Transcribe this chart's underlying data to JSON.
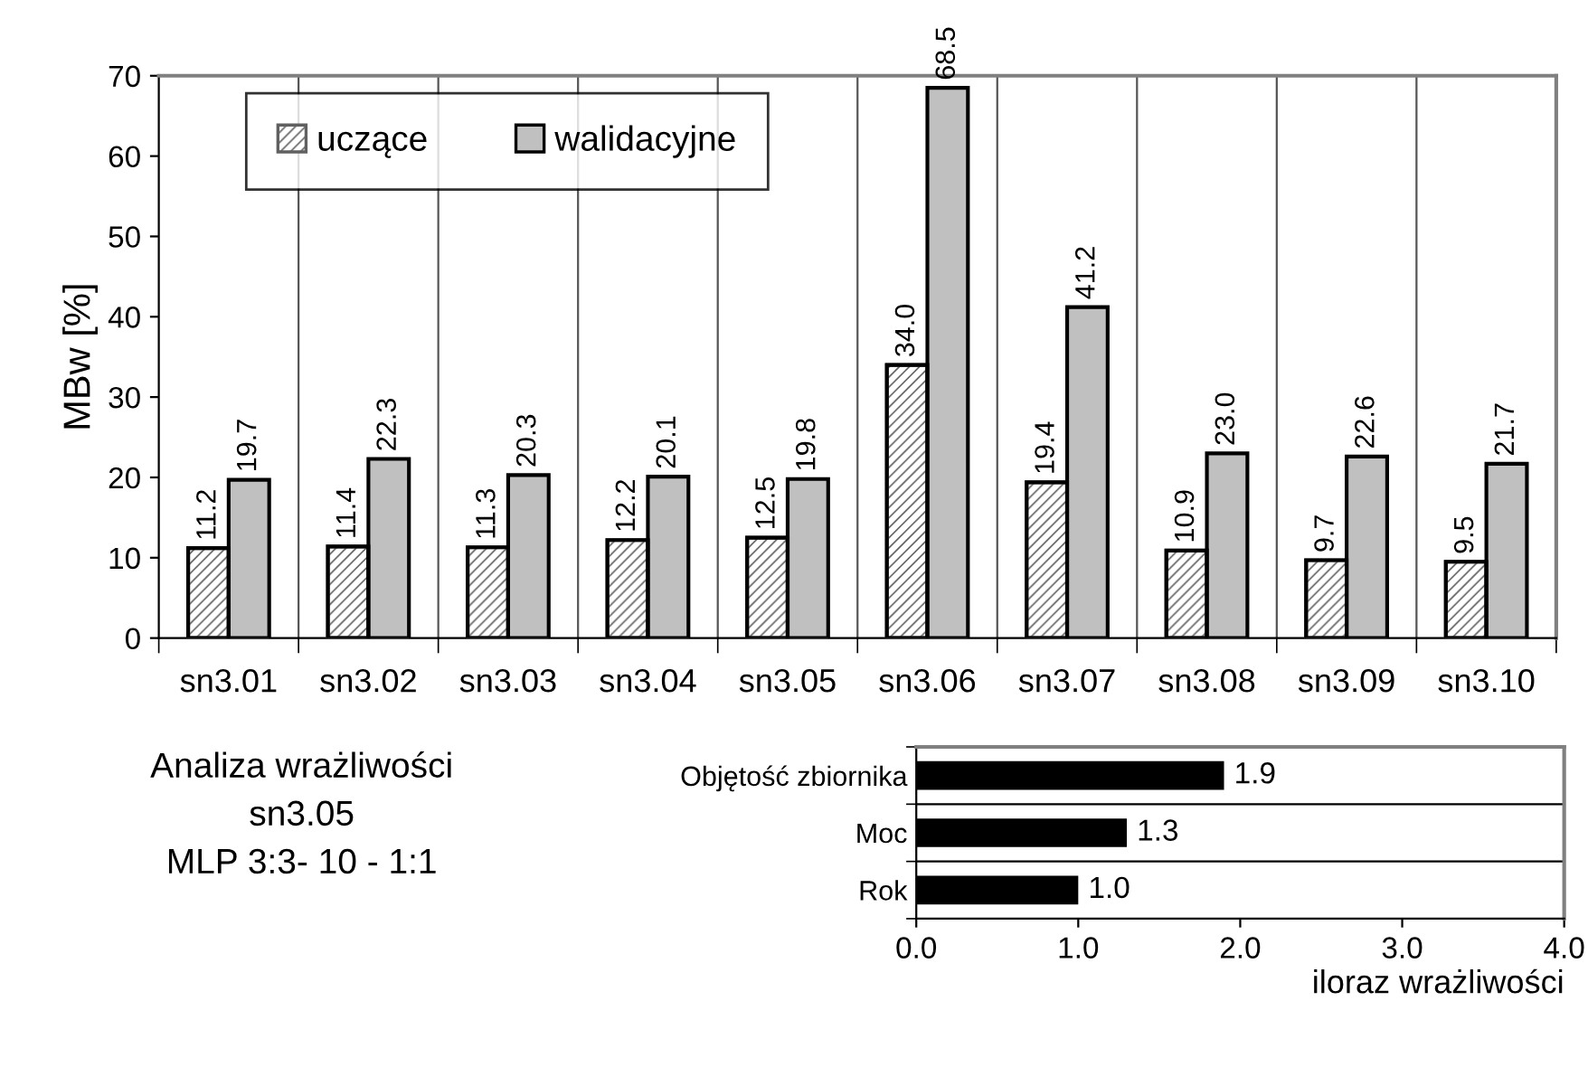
{
  "chart_data": [
    {
      "type": "bar",
      "ylabel": "MBw [%]",
      "categories": [
        "sn3.01",
        "sn3.02",
        "sn3.03",
        "sn3.04",
        "sn3.05",
        "sn3.06",
        "sn3.07",
        "sn3.08",
        "sn3.09",
        "sn3.10"
      ],
      "series": [
        {
          "name": "uczące",
          "color": "#606060",
          "values": [
            11.2,
            11.4,
            11.3,
            12.2,
            12.5,
            34.0,
            19.4,
            10.9,
            9.7,
            9.5
          ],
          "value_labels": [
            "11.2",
            "11.4",
            "11.3",
            "12.2",
            "12.5",
            "34.0",
            "19.4",
            "10.9",
            "9.7",
            "9.5"
          ]
        },
        {
          "name": "walidacyjne",
          "color": "#c0c0c0",
          "values": [
            19.7,
            22.3,
            20.3,
            20.1,
            19.8,
            68.5,
            41.2,
            23.0,
            22.6,
            21.7
          ],
          "value_labels": [
            "19.7",
            "22.3",
            "20.3",
            "20.1",
            "19.8",
            "68.5",
            "41.2",
            "23.0",
            "22.6",
            "21.7"
          ]
        }
      ],
      "ylim": [
        0,
        70
      ],
      "yticks": [
        0,
        10,
        20,
        30,
        40,
        50,
        60,
        70
      ],
      "grid": "x",
      "legend": "top left"
    },
    {
      "type": "bar",
      "orientation": "horizontal",
      "xlabel": "iloraz wrażliwości",
      "categories": [
        "Objętość zbiornika",
        "Moc",
        "Rok"
      ],
      "values": [
        1.9,
        1.3,
        1.0
      ],
      "value_labels": [
        "1.9",
        "1.3",
        "1.0"
      ],
      "color": "#000000",
      "xlim": [
        0,
        4
      ],
      "xticks": [
        {
          "value": 0,
          "label": "0.0"
        },
        {
          "value": 1,
          "label": "1.0"
        },
        {
          "value": 2,
          "label": "2.0"
        },
        {
          "value": 3,
          "label": "3.0"
        },
        {
          "value": 4,
          "label": "4.0"
        }
      ],
      "grid": "y",
      "annotations": [
        "Analiza wrażliwości",
        "sn3.05",
        "MLP 3:3- 10 - 1:1"
      ]
    }
  ]
}
